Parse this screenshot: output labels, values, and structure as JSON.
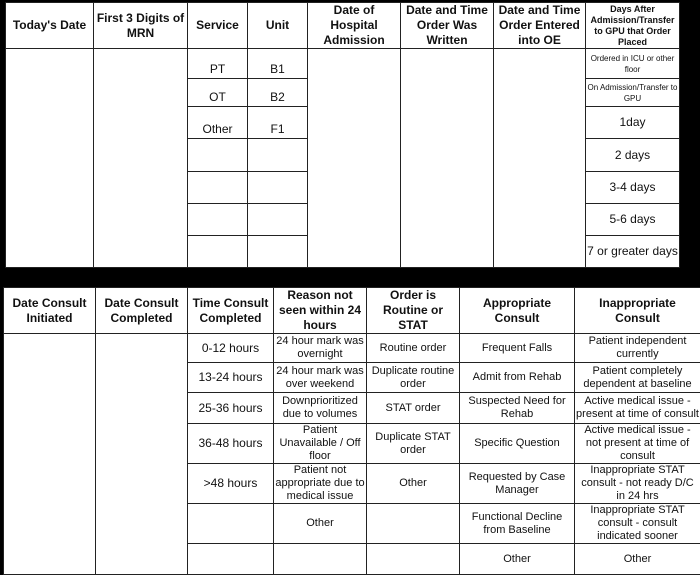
{
  "table1": {
    "headers": [
      "Today's Date",
      "First 3 Digits of MRN",
      "Service",
      "Unit",
      "Date of Hospital Admission",
      "Date and Time Order Was Written",
      "Date and Time Order Entered into OE",
      "Days After Admission/Transfer to GPU that Order Placed"
    ],
    "service": [
      "PT",
      "OT",
      "Other",
      "",
      "",
      "",
      ""
    ],
    "unit": [
      "B1",
      "B2",
      "F1",
      "",
      "",
      "",
      ""
    ],
    "days": [
      "Ordered in ICU or other floor",
      "On Admission/Transfer to GPU",
      "1day",
      "2 days",
      "3-4 days",
      "5-6 days",
      "7 or greater days"
    ]
  },
  "table2": {
    "headers": [
      "Date Consult Initiated",
      "Date Consult Completed",
      "Time Consult Completed",
      "Reason not seen within 24 hours",
      "Order is Routine or STAT",
      "Appropriate Consult",
      "Inappropriate Consult"
    ],
    "time": [
      "0-12 hours",
      "13-24 hours",
      "25-36 hours",
      "36-48 hours",
      ">48 hours",
      "",
      ""
    ],
    "reason": [
      "24 hour mark was overnight",
      "24 hour mark was over weekend",
      "Downprioritized due to volumes",
      "Patient Unavailable / Off floor",
      "Patient not appropriate due to medical issue",
      "Other",
      ""
    ],
    "order": [
      "Routine order",
      "Duplicate routine order",
      "STAT order",
      "Duplicate STAT order",
      "Other",
      "",
      ""
    ],
    "appropriate": [
      "Frequent Falls",
      "Admit from Rehab",
      "Suspected Need for Rehab",
      "Specific Question",
      "Requested by Case Manager",
      "Functional Decline from Baseline",
      "Other"
    ],
    "inappropriate": [
      "Patient independent currently",
      "Patient completely dependent at baseline",
      "Active medical issue - present at time of consult",
      "Active medical issue - not present at time of consult",
      "Inappropriate STAT consult - not ready D/C in 24 hrs",
      "Inappropriate STAT consult - consult indicated sooner",
      "Other"
    ]
  }
}
